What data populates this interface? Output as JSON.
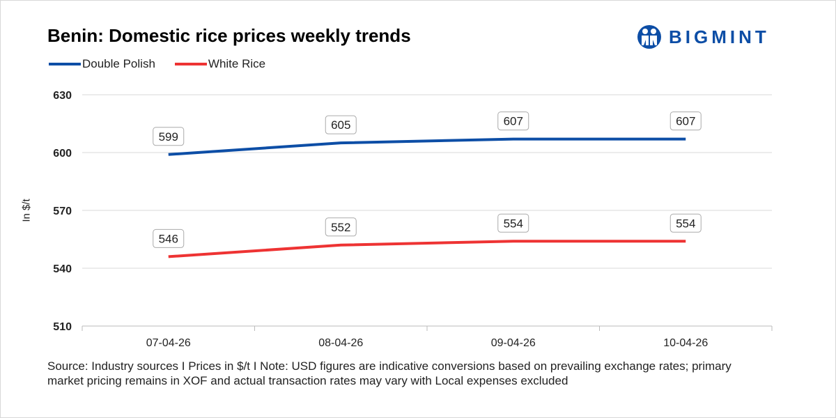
{
  "title": "Benin: Domestic rice prices weekly trends",
  "logo": {
    "text": "BIGMINT",
    "color": "#0d4ea6"
  },
  "chart_data": {
    "type": "line",
    "title": "Benin: Domestic rice prices weekly trends",
    "ylabel": "In $/t",
    "xlabel": "",
    "categories": [
      "07-04-26",
      "08-04-26",
      "09-04-26",
      "10-04-26"
    ],
    "yticks": [
      510,
      540,
      570,
      600,
      630
    ],
    "ylim": [
      510,
      630
    ],
    "grid": true,
    "legend": "top-left",
    "series": [
      {
        "name": "Double Polish",
        "color": "#0d4ea6",
        "values": [
          599,
          605,
          607,
          607
        ]
      },
      {
        "name": "White Rice",
        "color": "#ee3333",
        "values": [
          546,
          552,
          554,
          554
        ]
      }
    ]
  },
  "source": "Source: Industry sources I Prices in $/t I Note: USD figures are indicative conversions based on prevailing exchange rates; primary market pricing remains in XOF and actual transaction rates may vary with Local expenses excluded"
}
